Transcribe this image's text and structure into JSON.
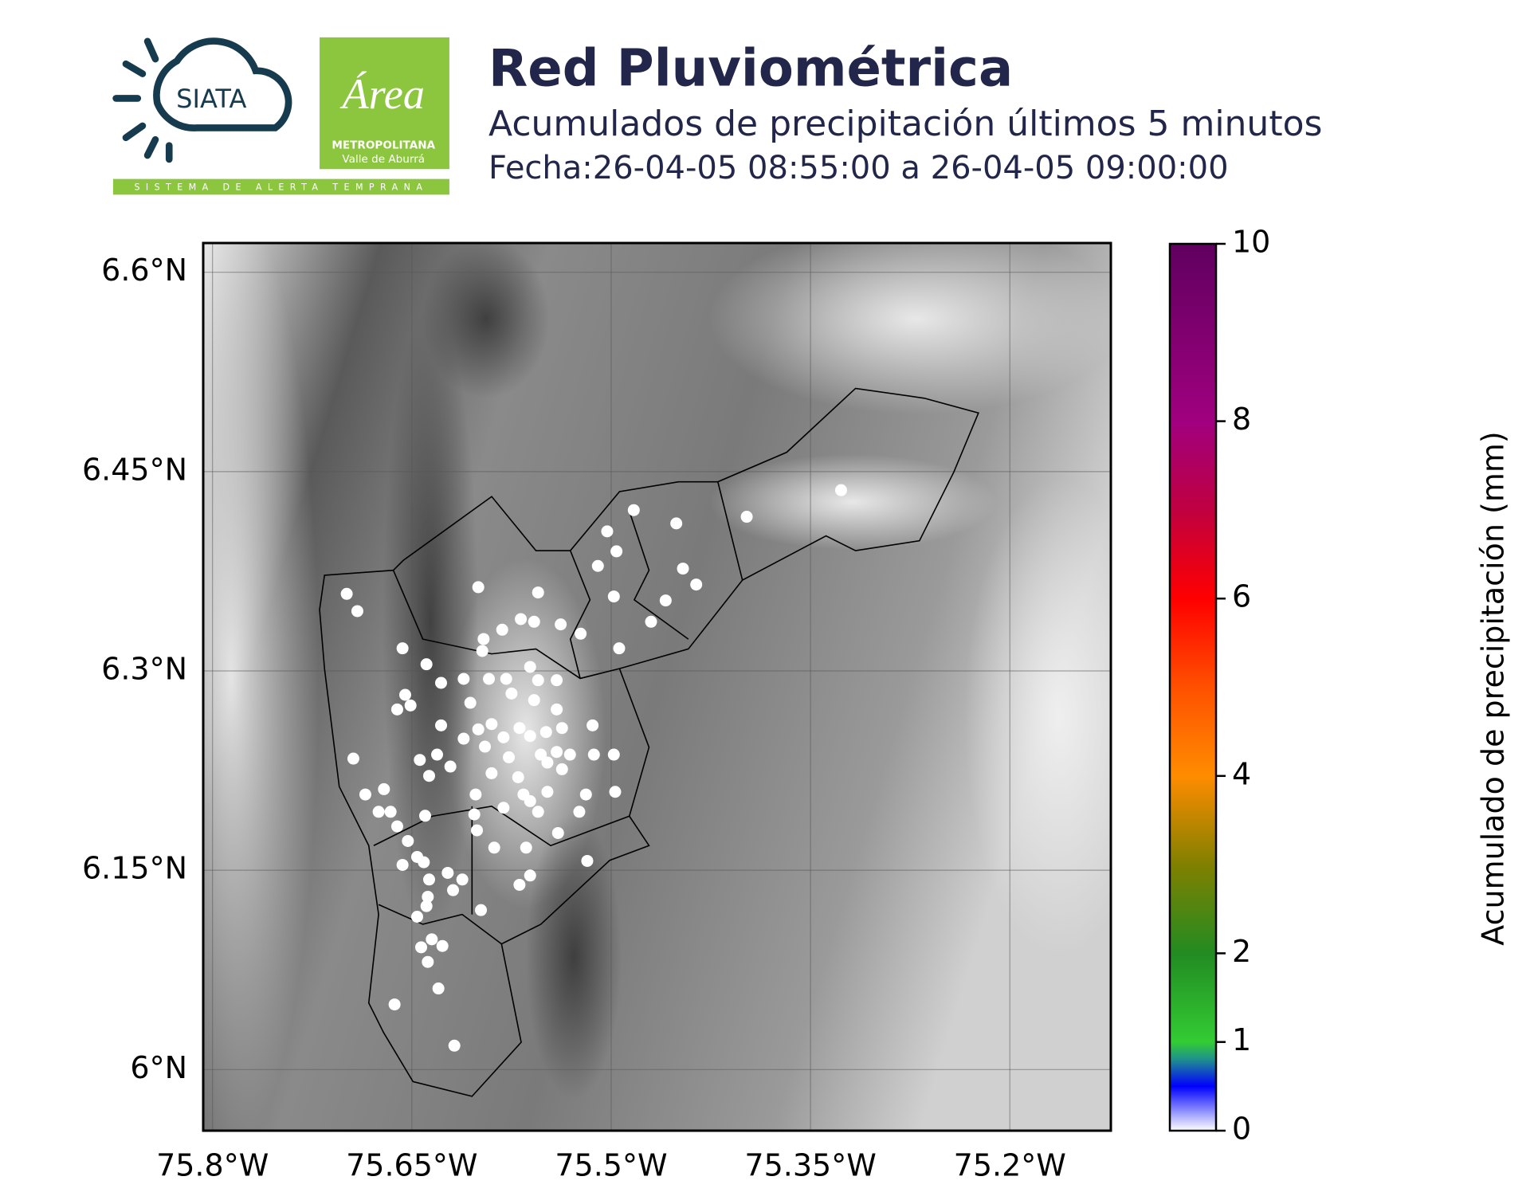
{
  "header": {
    "title": "Red Pluviométrica",
    "subtitle": "Acumulados de precipitación últimos 5 minutos",
    "date": "Fecha:26-04-05 08:55:00 a 26-04-05 09:00:00"
  },
  "logos": {
    "siata": "SIATA",
    "area": "Área",
    "metropolitana": "METROPOLITANA",
    "valle": "Valle de Aburrá",
    "sistema": "SISTEMA DE ALERTA TEMPRANA"
  },
  "chart_data": {
    "type": "scatter",
    "color": "#ffffff",
    "grid": true,
    "xlim": [
      -75.807,
      -75.124
    ],
    "ylim": [
      5.954,
      6.622
    ],
    "xticks": [
      {
        "value": -75.8,
        "label": "75.8°W"
      },
      {
        "value": -75.65,
        "label": "75.65°W"
      },
      {
        "value": -75.5,
        "label": "75.5°W"
      },
      {
        "value": -75.35,
        "label": "75.35°W"
      },
      {
        "value": -75.2,
        "label": "75.2°W"
      }
    ],
    "yticks": [
      {
        "value": 6.0,
        "label": "6°N"
      },
      {
        "value": 6.15,
        "label": "6.15°N"
      },
      {
        "value": 6.3,
        "label": "6.3°N"
      },
      {
        "value": 6.45,
        "label": "6.45°N"
      },
      {
        "value": 6.6,
        "label": "6.6°N"
      }
    ],
    "x": [
      -75.699,
      -75.691,
      -75.657,
      -75.6,
      -75.555,
      -75.483,
      -75.503,
      -75.451,
      -75.398,
      -75.327,
      -75.51,
      -75.496,
      -75.446,
      -75.436,
      -75.459,
      -75.47,
      -75.498,
      -75.494,
      -75.523,
      -75.568,
      -75.582,
      -75.596,
      -75.597,
      -75.558,
      -75.538,
      -75.639,
      -75.611,
      -75.628,
      -75.592,
      -75.579,
      -75.561,
      -75.541,
      -75.555,
      -75.575,
      -75.558,
      -75.541,
      -75.606,
      -75.655,
      -75.661,
      -75.651,
      -75.59,
      -75.569,
      -75.628,
      -75.6,
      -75.581,
      -75.561,
      -75.549,
      -75.537,
      -75.514,
      -75.611,
      -75.595,
      -75.577,
      -75.553,
      -75.541,
      -75.531,
      -75.513,
      -75.498,
      -75.631,
      -75.644,
      -75.621,
      -75.694,
      -75.637,
      -75.59,
      -75.57,
      -75.548,
      -75.537,
      -75.671,
      -75.685,
      -75.602,
      -75.566,
      -75.548,
      -75.519,
      -75.497,
      -75.561,
      -75.581,
      -75.555,
      -75.524,
      -75.675,
      -75.666,
      -75.64,
      -75.603,
      -75.661,
      -75.601,
      -75.54,
      -75.564,
      -75.588,
      -75.653,
      -75.646,
      -75.641,
      -75.657,
      -75.518,
      -75.623,
      -75.612,
      -75.561,
      -75.569,
      -75.637,
      -75.619,
      -75.638,
      -75.639,
      -75.598,
      -75.646,
      -75.635,
      -75.627,
      -75.643,
      -75.638,
      -75.63,
      -75.663,
      -75.618
    ],
    "values": [
      6.358,
      6.345,
      6.317,
      6.363,
      6.359,
      6.421,
      6.405,
      6.411,
      6.416,
      6.436,
      6.379,
      6.39,
      6.377,
      6.365,
      6.353,
      6.337,
      6.356,
      6.317,
      6.328,
      6.339,
      6.331,
      6.324,
      6.315,
      6.337,
      6.335,
      6.305,
      6.294,
      6.291,
      6.294,
      6.294,
      6.303,
      6.293,
      6.293,
      6.283,
      6.278,
      6.271,
      6.276,
      6.282,
      6.271,
      6.274,
      6.26,
      6.257,
      6.259,
      6.256,
      6.25,
      6.251,
      6.254,
      6.257,
      6.259,
      6.249,
      6.243,
      6.235,
      6.237,
      6.239,
      6.237,
      6.237,
      6.237,
      6.237,
      6.233,
      6.228,
      6.234,
      6.221,
      6.223,
      6.22,
      6.231,
      6.226,
      6.211,
      6.207,
      6.207,
      6.207,
      6.209,
      6.207,
      6.209,
      6.202,
      6.197,
      6.194,
      6.194,
      6.194,
      6.194,
      6.191,
      6.192,
      6.183,
      6.18,
      6.178,
      6.167,
      6.167,
      6.172,
      6.16,
      6.156,
      6.154,
      6.157,
      6.148,
      6.143,
      6.146,
      6.139,
      6.143,
      6.135,
      6.13,
      6.123,
      6.12,
      6.115,
      6.098,
      6.093,
      6.092,
      6.081,
      6.061,
      6.049,
      6.018
    ],
    "colorbar": {
      "label": "Acumulado de precipitación (mm)",
      "lim": [
        0,
        10
      ],
      "ticks": [
        0,
        1,
        2,
        4,
        6,
        8,
        10
      ],
      "colors": [
        {
          "value": 0,
          "color": "#ffffff"
        },
        {
          "value": 0.5,
          "color": "#0000ff"
        },
        {
          "value": 0.8,
          "color": "#1f8f8f"
        },
        {
          "value": 1,
          "color": "#33cc33"
        },
        {
          "value": 2,
          "color": "#228b22"
        },
        {
          "value": 3,
          "color": "#808000"
        },
        {
          "value": 4,
          "color": "#ff8c00"
        },
        {
          "value": 5,
          "color": "#ff5000"
        },
        {
          "value": 6,
          "color": "#ff0000"
        },
        {
          "value": 7,
          "color": "#c00040"
        },
        {
          "value": 8,
          "color": "#a0007f"
        },
        {
          "value": 10,
          "color": "#600060"
        }
      ]
    }
  }
}
